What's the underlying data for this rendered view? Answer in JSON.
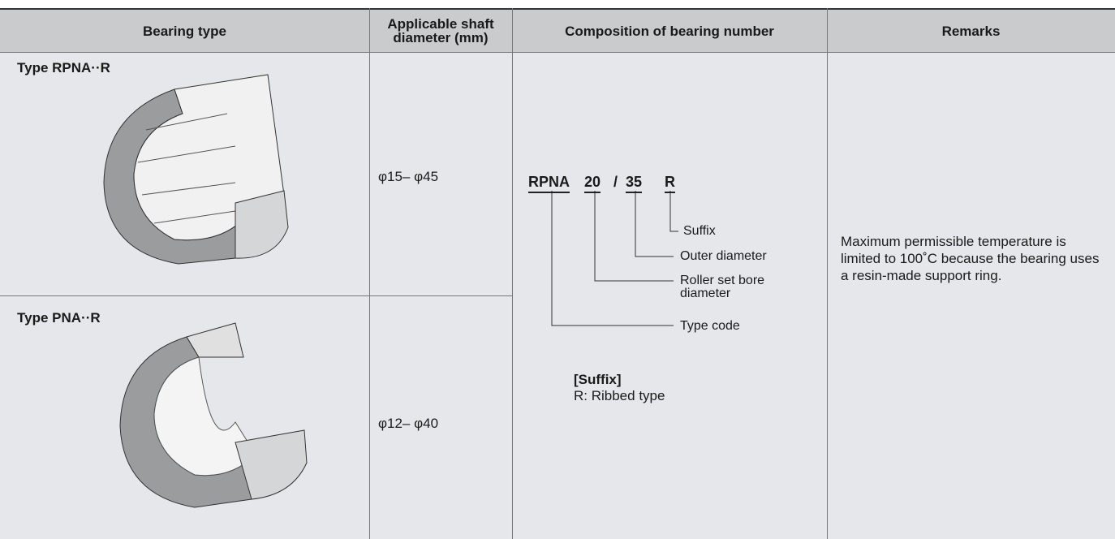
{
  "header": {
    "columns": [
      "Bearing type",
      "Applicable shaft diameter (mm)",
      "Composition of bearing number",
      "Remarks"
    ]
  },
  "rows": [
    {
      "type": "Type RPNA··R",
      "shaft": "φ15– φ45"
    },
    {
      "type": "Type PNA··R",
      "shaft": "φ12– φ40"
    }
  ],
  "composition": {
    "parts": [
      "RPNA",
      "20",
      "/",
      "35",
      "R"
    ],
    "labels": [
      "Suffix",
      "Outer diameter",
      "Roller set bore diameter",
      "Type code"
    ],
    "suffix_title": "[Suffix]",
    "suffix_text": "R: Ribbed type"
  },
  "remarks": "Maximum permissible temperature is limited to 100˚C because the bearing uses a resin-made support ring."
}
